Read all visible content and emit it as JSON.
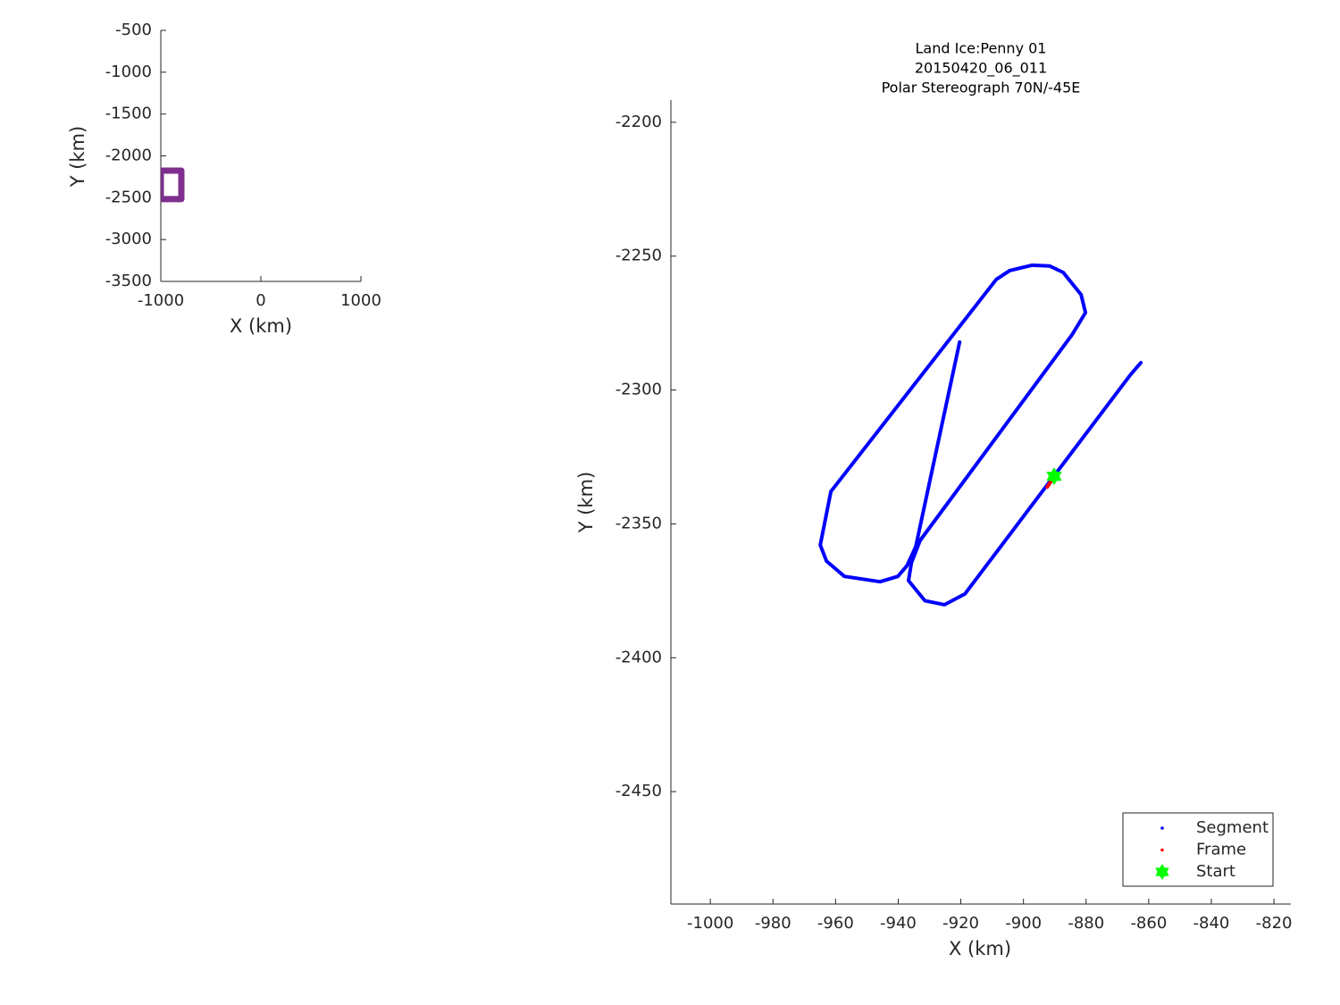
{
  "chart_data": [
    {
      "type": "line",
      "xlabel": "X (km)",
      "ylabel": "Y (km)",
      "xlim": [
        -1000,
        1000
      ],
      "ylim": [
        -3500,
        -500
      ],
      "xticks": [
        -1000,
        0,
        1000
      ],
      "yticks": [
        -500,
        -1000,
        -1500,
        -2000,
        -2500,
        -3000,
        -3500
      ],
      "series": [
        {
          "color": "#7e2f8e",
          "x": [
            -1000,
            -795,
            -795,
            -1000,
            -1000
          ],
          "y": [
            -2176,
            -2176,
            -2517,
            -2517,
            -2176
          ]
        }
      ]
    },
    {
      "type": "line",
      "title": [
        "Land Ice:Penny 01",
        "20150420_06_011",
        "Polar Stereograph 70N/-45E"
      ],
      "xlabel": "X (km)",
      "ylabel": "Y (km)",
      "xlim": [
        -1012.6,
        -814.6
      ],
      "ylim": [
        -2492,
        -2191.7
      ],
      "xticks": [
        -1000,
        -980,
        -960,
        -940,
        -920,
        -900,
        -880,
        -860,
        -840,
        -820
      ],
      "yticks": [
        -2200,
        -2250,
        -2300,
        -2350,
        -2400,
        -2450
      ],
      "legend": "southeast",
      "series": [
        {
          "name": "Segment",
          "color": "#0000ff",
          "marker": "point",
          "x": [
            -862.5,
            -865.9,
            -918.7,
            -925.2,
            -931.5,
            -936.7,
            -935.8,
            -933.0,
            -884.5,
            -880.2,
            -881.6,
            -887.3,
            -891.6,
            -897.3,
            -904.4,
            -908.7,
            -961.5,
            -964.9,
            -962.9,
            -957.2,
            -945.8,
            -940.1,
            -937.2,
            -934.4,
            -920.4
          ],
          "y": [
            -2289.8,
            -2294.4,
            -2376.2,
            -2380.2,
            -2378.7,
            -2371.2,
            -2364.6,
            -2356.2,
            -2279.4,
            -2271.1,
            -2264.4,
            -2256.1,
            -2253.7,
            -2253.4,
            -2255.4,
            -2258.7,
            -2337.9,
            -2357.9,
            -2363.9,
            -2369.6,
            -2371.6,
            -2369.6,
            -2365.6,
            -2358.5,
            -2282.1
          ]
        },
        {
          "name": "Frame",
          "color": "#ff0000",
          "marker": "point",
          "x": [
            -892.4,
            -890.1
          ],
          "y": [
            -2336.2,
            -2332.2
          ]
        },
        {
          "name": "Start",
          "color": "#00ff00",
          "marker": "hexagram",
          "x": [
            -890.2
          ],
          "y": [
            -2332.2
          ]
        }
      ]
    }
  ]
}
